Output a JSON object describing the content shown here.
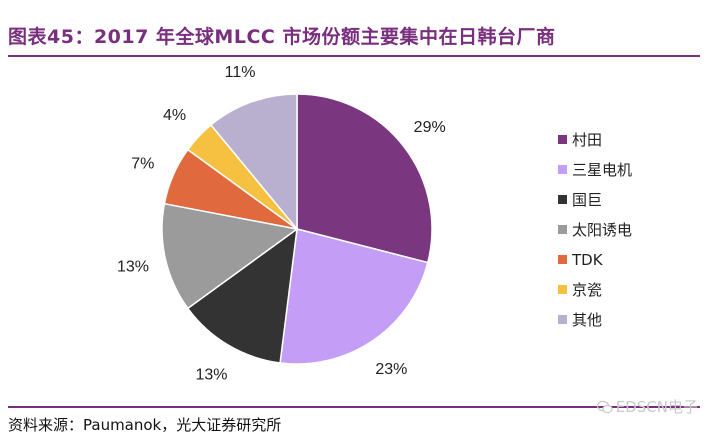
{
  "title": "图表45：2017 年全球MLCC 市场份额主要集中在日韩台厂商",
  "source": "资料来源：Paumanok，光大证券研究所",
  "watermark": "EDSCN电子",
  "chart_data": {
    "type": "pie",
    "start_angle": "12 o'clock",
    "direction": "clockwise",
    "categories": [
      "村田",
      "三星电机",
      "国巨",
      "太阳诱电",
      "TDK",
      "京瓷",
      "其他"
    ],
    "values": [
      29,
      23,
      13,
      13,
      7,
      4,
      11
    ],
    "labels": [
      "29%",
      "23%",
      "13%",
      "13%",
      "7%",
      "4%",
      "11%"
    ],
    "colors": [
      "#7b3680",
      "#c39df6",
      "#333333",
      "#9b9b9b",
      "#e06a3e",
      "#f6c040",
      "#b9b0cf"
    ],
    "legend_position": "right"
  }
}
